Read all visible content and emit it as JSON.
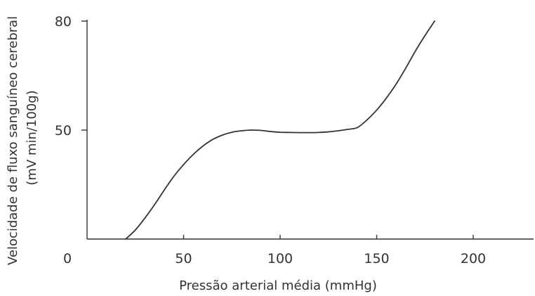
{
  "chart_data": {
    "type": "line",
    "title": "",
    "xlabel": "Pressão arterial média (mmHg)",
    "ylabel_lines": [
      "Velocidade de fluxo sanguíneo cerebral",
      "(mV min/100g)"
    ],
    "origin_label": "0",
    "xlim": [
      0,
      232
    ],
    "ylim": [
      20,
      80
    ],
    "x_ticks": [
      50,
      100,
      150,
      200
    ],
    "x_tick_labels": [
      "50",
      "100",
      "150",
      "200"
    ],
    "y_ticks": [
      50,
      80
    ],
    "y_tick_labels": [
      "50",
      "80"
    ],
    "grid": false,
    "series": [
      {
        "x": [
          20,
          25,
          30,
          35,
          40,
          45,
          50,
          55,
          60,
          65,
          70,
          75,
          80,
          85,
          90,
          95,
          100,
          105,
          110,
          115,
          120,
          125,
          130,
          135,
          140,
          145,
          150,
          155,
          160,
          165,
          170,
          175,
          180
        ],
        "values": [
          20,
          22.5,
          25.8,
          29.5,
          33.5,
          37.3,
          40.5,
          43.3,
          45.6,
          47.4,
          48.6,
          49.4,
          49.8,
          50,
          49.9,
          49.6,
          49.4,
          49.35,
          49.3,
          49.3,
          49.35,
          49.5,
          49.8,
          50.2,
          50.7,
          52.8,
          55.5,
          58.8,
          62.6,
          67,
          71.7,
          76,
          80
        ]
      }
    ],
    "colors": {
      "line": "#333333",
      "axis": "#333333",
      "text": "#333333",
      "background": "#ffffff"
    }
  }
}
